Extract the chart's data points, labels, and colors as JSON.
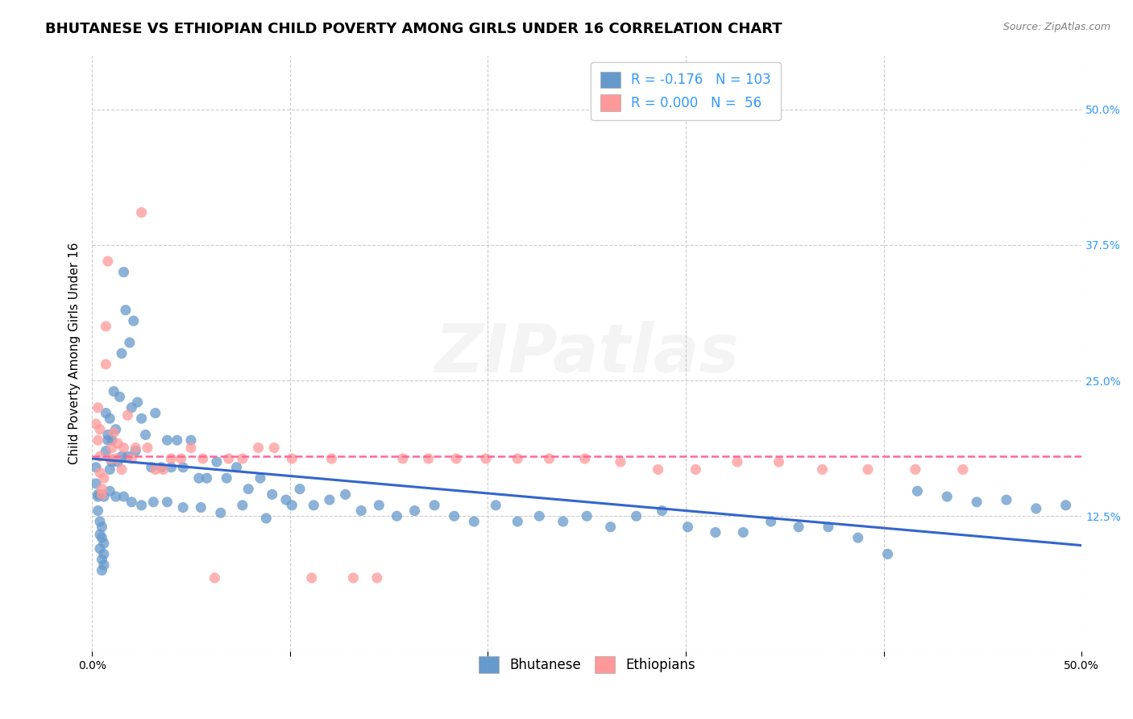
{
  "title": "BHUTANESE VS ETHIOPIAN CHILD POVERTY AMONG GIRLS UNDER 16 CORRELATION CHART",
  "source": "Source: ZipAtlas.com",
  "ylabel": "Child Poverty Among Girls Under 16",
  "xlim": [
    0.0,
    0.5
  ],
  "ylim": [
    0.0,
    0.55
  ],
  "ytick_right_labels": [
    "",
    "12.5%",
    "25.0%",
    "37.5%",
    "50.0%"
  ],
  "bhutanese_color": "#6699CC",
  "ethiopian_color": "#FF9999",
  "bhutanese_line_color": "#3366CC",
  "ethiopian_line_color": "#FF6699",
  "watermark": "ZIPatlas",
  "legend_R1": "-0.176",
  "legend_N1": "103",
  "legend_R2": "0.000",
  "legend_N2": "56",
  "bhutanese_x": [
    0.002,
    0.002,
    0.003,
    0.003,
    0.004,
    0.004,
    0.004,
    0.005,
    0.005,
    0.005,
    0.005,
    0.006,
    0.006,
    0.006,
    0.007,
    0.007,
    0.008,
    0.008,
    0.009,
    0.009,
    0.01,
    0.01,
    0.011,
    0.012,
    0.013,
    0.014,
    0.015,
    0.015,
    0.016,
    0.017,
    0.018,
    0.019,
    0.02,
    0.021,
    0.022,
    0.023,
    0.025,
    0.027,
    0.03,
    0.032,
    0.035,
    0.038,
    0.04,
    0.043,
    0.046,
    0.05,
    0.054,
    0.058,
    0.063,
    0.068,
    0.073,
    0.079,
    0.085,
    0.091,
    0.098,
    0.105,
    0.112,
    0.12,
    0.128,
    0.136,
    0.145,
    0.154,
    0.163,
    0.173,
    0.183,
    0.193,
    0.204,
    0.215,
    0.226,
    0.238,
    0.25,
    0.262,
    0.275,
    0.288,
    0.301,
    0.315,
    0.329,
    0.343,
    0.357,
    0.372,
    0.387,
    0.402,
    0.417,
    0.432,
    0.447,
    0.462,
    0.477,
    0.492,
    0.003,
    0.006,
    0.009,
    0.012,
    0.016,
    0.02,
    0.025,
    0.031,
    0.038,
    0.046,
    0.055,
    0.065,
    0.076,
    0.088,
    0.101
  ],
  "bhutanese_y": [
    0.17,
    0.155,
    0.145,
    0.13,
    0.12,
    0.108,
    0.095,
    0.085,
    0.075,
    0.105,
    0.115,
    0.1,
    0.09,
    0.08,
    0.22,
    0.185,
    0.195,
    0.2,
    0.168,
    0.215,
    0.195,
    0.175,
    0.24,
    0.205,
    0.175,
    0.235,
    0.275,
    0.18,
    0.35,
    0.315,
    0.18,
    0.285,
    0.225,
    0.305,
    0.185,
    0.23,
    0.215,
    0.2,
    0.17,
    0.22,
    0.17,
    0.195,
    0.17,
    0.195,
    0.17,
    0.195,
    0.16,
    0.16,
    0.175,
    0.16,
    0.17,
    0.15,
    0.16,
    0.145,
    0.14,
    0.15,
    0.135,
    0.14,
    0.145,
    0.13,
    0.135,
    0.125,
    0.13,
    0.135,
    0.125,
    0.12,
    0.135,
    0.12,
    0.125,
    0.12,
    0.125,
    0.115,
    0.125,
    0.13,
    0.115,
    0.11,
    0.11,
    0.12,
    0.115,
    0.115,
    0.105,
    0.09,
    0.148,
    0.143,
    0.138,
    0.14,
    0.132,
    0.135,
    0.143,
    0.143,
    0.148,
    0.143,
    0.143,
    0.138,
    0.135,
    0.138,
    0.138,
    0.133,
    0.133,
    0.128,
    0.135,
    0.123,
    0.135
  ],
  "ethiopian_x": [
    0.002,
    0.003,
    0.003,
    0.004,
    0.004,
    0.004,
    0.005,
    0.005,
    0.006,
    0.007,
    0.007,
    0.008,
    0.009,
    0.01,
    0.011,
    0.012,
    0.013,
    0.015,
    0.016,
    0.018,
    0.02,
    0.022,
    0.025,
    0.028,
    0.032,
    0.036,
    0.04,
    0.045,
    0.05,
    0.056,
    0.062,
    0.069,
    0.076,
    0.084,
    0.092,
    0.101,
    0.111,
    0.121,
    0.132,
    0.144,
    0.157,
    0.17,
    0.184,
    0.199,
    0.215,
    0.231,
    0.249,
    0.267,
    0.286,
    0.305,
    0.326,
    0.347,
    0.369,
    0.392,
    0.416,
    0.44
  ],
  "ethiopian_y": [
    0.21,
    0.225,
    0.195,
    0.205,
    0.18,
    0.165,
    0.15,
    0.145,
    0.16,
    0.265,
    0.3,
    0.36,
    0.178,
    0.188,
    0.202,
    0.178,
    0.192,
    0.168,
    0.188,
    0.218,
    0.178,
    0.188,
    0.405,
    0.188,
    0.168,
    0.168,
    0.178,
    0.178,
    0.188,
    0.178,
    0.068,
    0.178,
    0.178,
    0.188,
    0.188,
    0.178,
    0.068,
    0.178,
    0.068,
    0.068,
    0.178,
    0.178,
    0.178,
    0.178,
    0.178,
    0.178,
    0.178,
    0.175,
    0.168,
    0.168,
    0.175,
    0.175,
    0.168,
    0.168,
    0.168,
    0.168
  ],
  "grid_color": "#CCCCCC",
  "background_color": "#FFFFFF",
  "title_fontsize": 13,
  "axis_label_fontsize": 11,
  "tick_fontsize": 10,
  "legend_fontsize": 12,
  "watermark_alpha": 0.12,
  "bhutanese_trend_x": [
    0.0,
    0.5
  ],
  "bhutanese_trend_y": [
    0.178,
    0.098
  ],
  "ethiopian_trend_x": [
    0.0,
    0.5
  ],
  "ethiopian_trend_y": [
    0.18,
    0.18
  ]
}
